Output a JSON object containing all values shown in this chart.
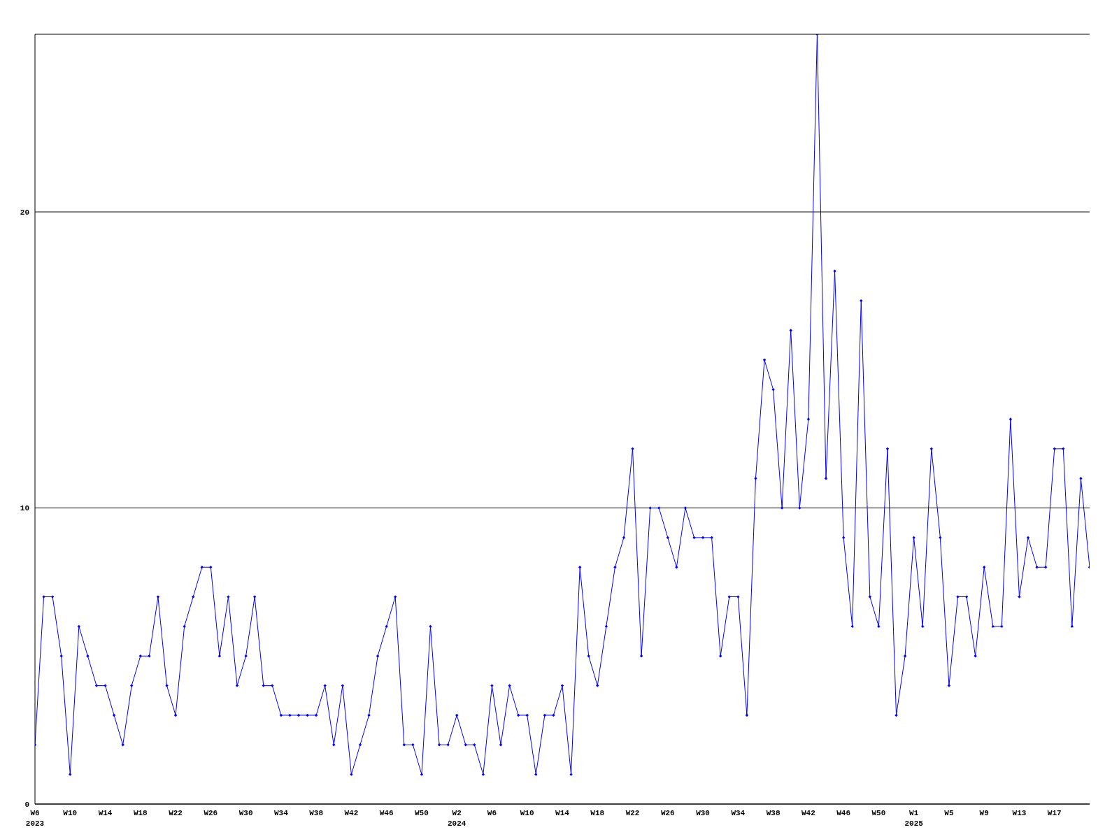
{
  "chart_data": {
    "type": "line",
    "categories": [
      "W6\n2023",
      null,
      null,
      null,
      "W10",
      null,
      null,
      null,
      "W14",
      null,
      null,
      null,
      "W18",
      null,
      null,
      null,
      "W22",
      null,
      null,
      null,
      "W26",
      null,
      null,
      null,
      "W30",
      null,
      null,
      null,
      "W34",
      null,
      null,
      null,
      "W38",
      null,
      null,
      null,
      "W42",
      null,
      null,
      null,
      "W46",
      null,
      null,
      null,
      "W50",
      null,
      null,
      null,
      "W2\n2024",
      null,
      null,
      null,
      "W6",
      null,
      null,
      null,
      "W10",
      null,
      null,
      null,
      "W14",
      null,
      null,
      null,
      "W18",
      null,
      null,
      null,
      "W22",
      null,
      null,
      null,
      "W26",
      null,
      null,
      null,
      "W30",
      null,
      null,
      null,
      "W34",
      null,
      null,
      null,
      "W38",
      null,
      null,
      null,
      "W42",
      null,
      null,
      null,
      "W46",
      null,
      null,
      null,
      "W50",
      null,
      null,
      null,
      "W1\n2025",
      null,
      null,
      null,
      "W5",
      null,
      null,
      null,
      "W9",
      null,
      null,
      null,
      "W13",
      null,
      null,
      null,
      "W17",
      null,
      null,
      null,
      null
    ],
    "series": [
      {
        "color": "#0000ff",
        "values": [
          2,
          7,
          7,
          5,
          1,
          6,
          5,
          4,
          4,
          3,
          2,
          4,
          5,
          5,
          7,
          4,
          3,
          6,
          7,
          8,
          8,
          5,
          7,
          4,
          5,
          7,
          4,
          4,
          3,
          3,
          3,
          3,
          3,
          4,
          2,
          4,
          1,
          2,
          3,
          5,
          6,
          7,
          2,
          2,
          1,
          6,
          2,
          2,
          3,
          2,
          2,
          1,
          4,
          2,
          4,
          3,
          3,
          1,
          3,
          3,
          4,
          1,
          8,
          5,
          4,
          6,
          8,
          9,
          12,
          5,
          10,
          10,
          9,
          8,
          10,
          9,
          9,
          9,
          5,
          7,
          7,
          3,
          11,
          15,
          14,
          10,
          16,
          10,
          13,
          26,
          11,
          18,
          9,
          6,
          17,
          7,
          6,
          12,
          3,
          5,
          9,
          6,
          12,
          9,
          4,
          7,
          7,
          5,
          8,
          6,
          6,
          13,
          7,
          9,
          8,
          8,
          12,
          12,
          6,
          11,
          8
        ]
      }
    ],
    "ylim": [
      0,
      26
    ],
    "yticks": [
      0,
      10,
      20
    ],
    "grid": "y",
    "marker": "diamond",
    "line_style": "solid"
  }
}
